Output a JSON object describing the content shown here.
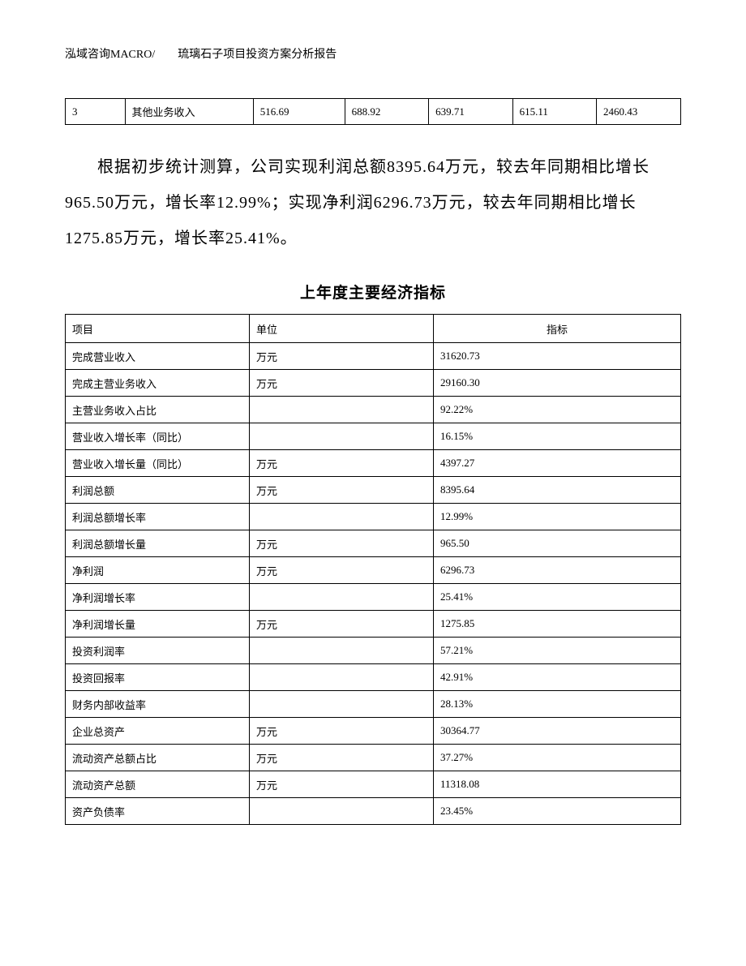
{
  "header": "泓域咨询MACRO/　　琉璃石子项目投资方案分析报告",
  "table1": {
    "row": [
      "3",
      "其他业务收入",
      "516.69",
      "688.92",
      "639.71",
      "615.11",
      "2460.43"
    ]
  },
  "paragraph": "根据初步统计测算，公司实现利润总额8395.64万元，较去年同期相比增长965.50万元，增长率12.99%；实现净利润6296.73万元，较去年同期相比增长1275.85万元，增长率25.41%。",
  "section_title": "上年度主要经济指标",
  "table2": {
    "headers": [
      "项目",
      "单位",
      "指标"
    ],
    "rows": [
      [
        "完成营业收入",
        "万元",
        "31620.73"
      ],
      [
        "完成主营业务收入",
        "万元",
        "29160.30"
      ],
      [
        "主营业务收入占比",
        "",
        "92.22%"
      ],
      [
        "营业收入增长率（同比）",
        "",
        "16.15%"
      ],
      [
        "营业收入增长量（同比）",
        "万元",
        "4397.27"
      ],
      [
        "利润总额",
        "万元",
        "8395.64"
      ],
      [
        "利润总额增长率",
        "",
        "12.99%"
      ],
      [
        "利润总额增长量",
        "万元",
        "965.50"
      ],
      [
        "净利润",
        "万元",
        "6296.73"
      ],
      [
        "净利润增长率",
        "",
        "25.41%"
      ],
      [
        "净利润增长量",
        "万元",
        "1275.85"
      ],
      [
        "投资利润率",
        "",
        "57.21%"
      ],
      [
        "投资回报率",
        "",
        "42.91%"
      ],
      [
        "财务内部收益率",
        "",
        "28.13%"
      ],
      [
        "企业总资产",
        "万元",
        "30364.77"
      ],
      [
        "流动资产总额占比",
        "万元",
        "37.27%"
      ],
      [
        "流动资产总额",
        "万元",
        "11318.08"
      ],
      [
        "资产负债率",
        "",
        "23.45%"
      ]
    ]
  }
}
